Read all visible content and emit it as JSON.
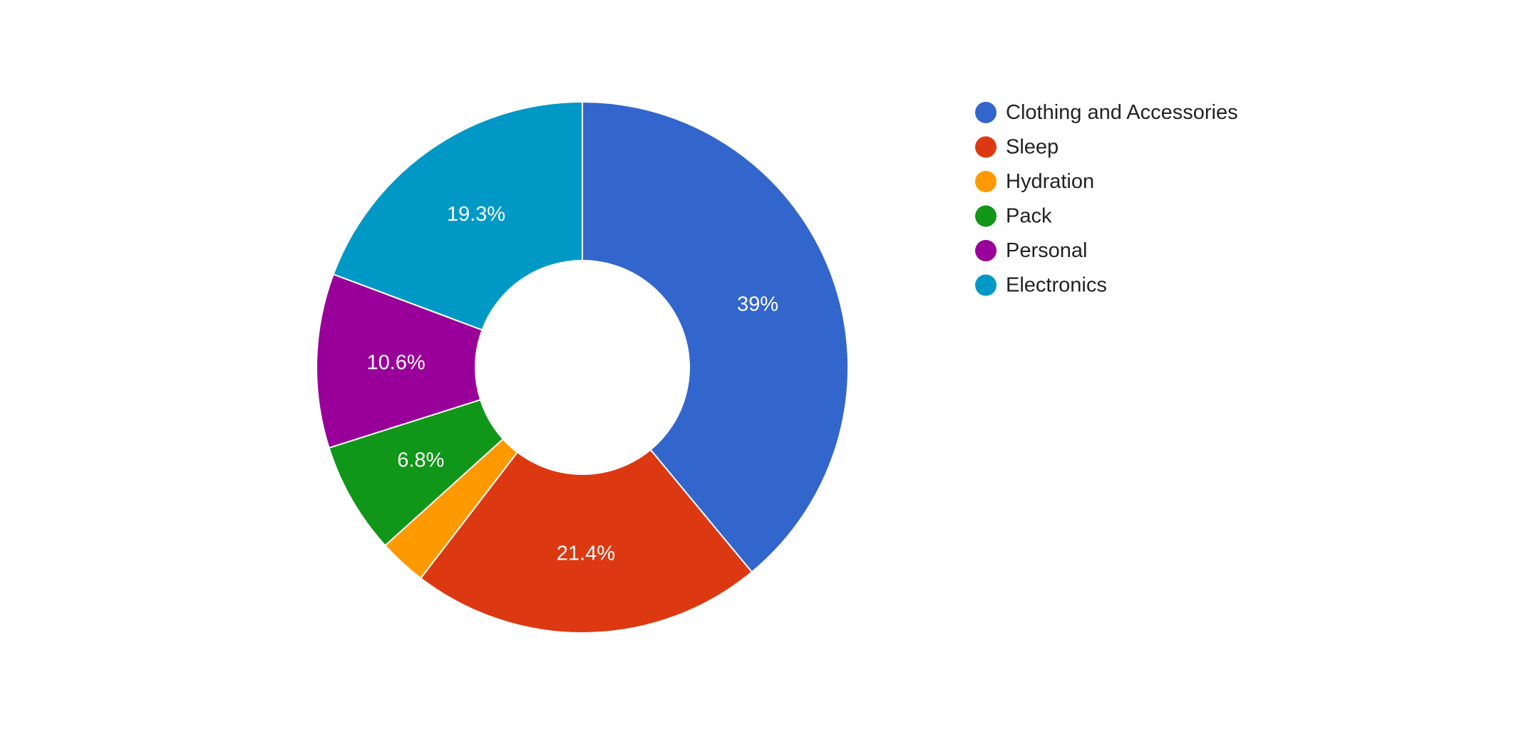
{
  "chart_data": {
    "type": "pie",
    "donut": true,
    "legend_position": "right",
    "slices": [
      {
        "name": "Clothing and Accessories",
        "value": 39.0,
        "label": "39%",
        "color": "#3366cc"
      },
      {
        "name": "Sleep",
        "value": 21.4,
        "label": "21.4%",
        "color": "#dc3912"
      },
      {
        "name": "Hydration",
        "value": 2.9,
        "label": "",
        "color": "#ff9900"
      },
      {
        "name": "Pack",
        "value": 6.8,
        "label": "6.8%",
        "color": "#109618"
      },
      {
        "name": "Personal",
        "value": 10.6,
        "label": "10.6%",
        "color": "#990099"
      },
      {
        "name": "Electronics",
        "value": 19.3,
        "label": "19.3%",
        "color": "#0099c6"
      }
    ]
  }
}
